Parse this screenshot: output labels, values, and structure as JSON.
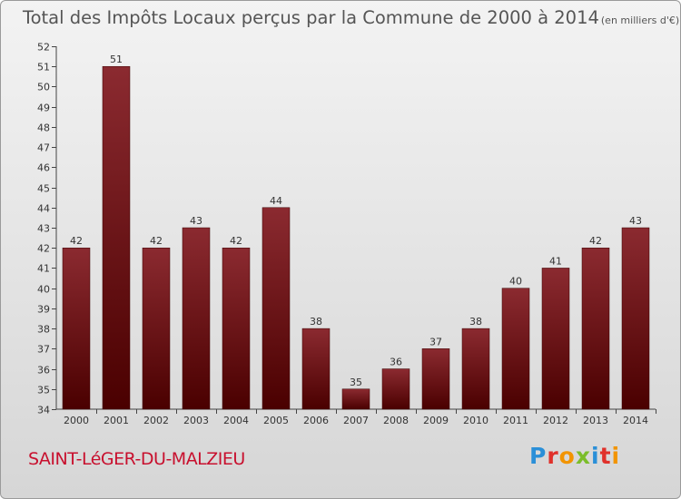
{
  "colors": {
    "bar_top": "#8b2a30",
    "bar_bottom": "#4a0000",
    "commune": "#c8102e"
  },
  "chart_data": {
    "type": "bar",
    "title": "Total des Impôts Locaux perçus par la Commune de 2000 à 2014",
    "subtitle": "(en milliers d'€)",
    "xlabel": "",
    "ylabel": "",
    "categories": [
      "2000",
      "2001",
      "2002",
      "2003",
      "2004",
      "2005",
      "2006",
      "2007",
      "2008",
      "2009",
      "2010",
      "2011",
      "2012",
      "2013",
      "2014"
    ],
    "values": [
      42,
      51,
      42,
      43,
      42,
      44,
      38,
      35,
      36,
      37,
      38,
      40,
      41,
      42,
      43
    ],
    "ylim": [
      34,
      52
    ],
    "yticks": [
      34,
      35,
      36,
      37,
      38,
      39,
      40,
      41,
      42,
      43,
      44,
      45,
      46,
      47,
      48,
      49,
      50,
      51,
      52
    ],
    "grid": false,
    "legend": "none"
  },
  "footer": {
    "commune": "SAINT-LéGER-DU-MALZIEU",
    "brand": "Proxiti"
  }
}
